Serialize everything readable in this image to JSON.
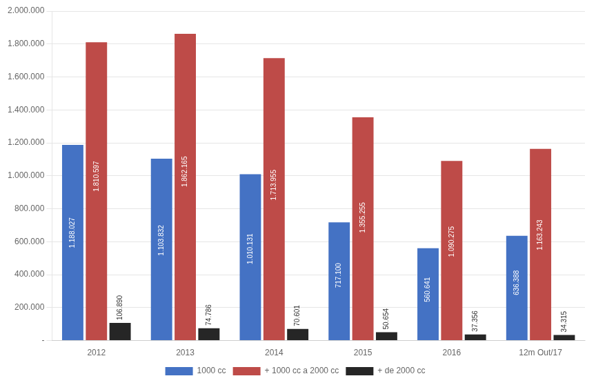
{
  "chart_data": {
    "type": "bar",
    "categories": [
      "2012",
      "2013",
      "2014",
      "2015",
      "2016",
      "12m Out/17"
    ],
    "series": [
      {
        "name": "1000 cc",
        "color": "#4472C4",
        "values": [
          1188027,
          1103832,
          1010131,
          717100,
          560641,
          636388
        ],
        "value_labels": [
          "1.188.027",
          "1.103.832",
          "1.010.131",
          "717.100",
          "560.641",
          "636.388"
        ]
      },
      {
        "name": "+ 1000 cc a 2000 cc",
        "color": "#BE4B48",
        "values": [
          1810597,
          1862165,
          1713955,
          1355255,
          1090275,
          1163243
        ],
        "value_labels": [
          "1.810.597",
          "1.862.165",
          "1.713.955",
          "1.355.255",
          "1.090.275",
          "1.163.243"
        ]
      },
      {
        "name": "+ de 2000 cc",
        "color": "#262626",
        "values": [
          106890,
          74786,
          70601,
          50654,
          37356,
          34315
        ],
        "value_labels": [
          "106.890",
          "74.786",
          "70.601",
          "50.654",
          "37.356",
          "34.315"
        ]
      }
    ],
    "ylim": [
      0,
      2000000
    ],
    "yticks": [
      {
        "value": 0,
        "label": "-"
      },
      {
        "value": 200000,
        "label": "200.000"
      },
      {
        "value": 400000,
        "label": "400.000"
      },
      {
        "value": 600000,
        "label": "600.000"
      },
      {
        "value": 800000,
        "label": "800.000"
      },
      {
        "value": 1000000,
        "label": "1.000.000"
      },
      {
        "value": 1200000,
        "label": "1.200.000"
      },
      {
        "value": 1400000,
        "label": "1.400.000"
      },
      {
        "value": 1600000,
        "label": "1.600.000"
      },
      {
        "value": 1800000,
        "label": "1.800.000"
      },
      {
        "value": 2000000,
        "label": "2.000.000"
      }
    ],
    "grid": true,
    "legend": "bottom",
    "data_labels": true
  }
}
